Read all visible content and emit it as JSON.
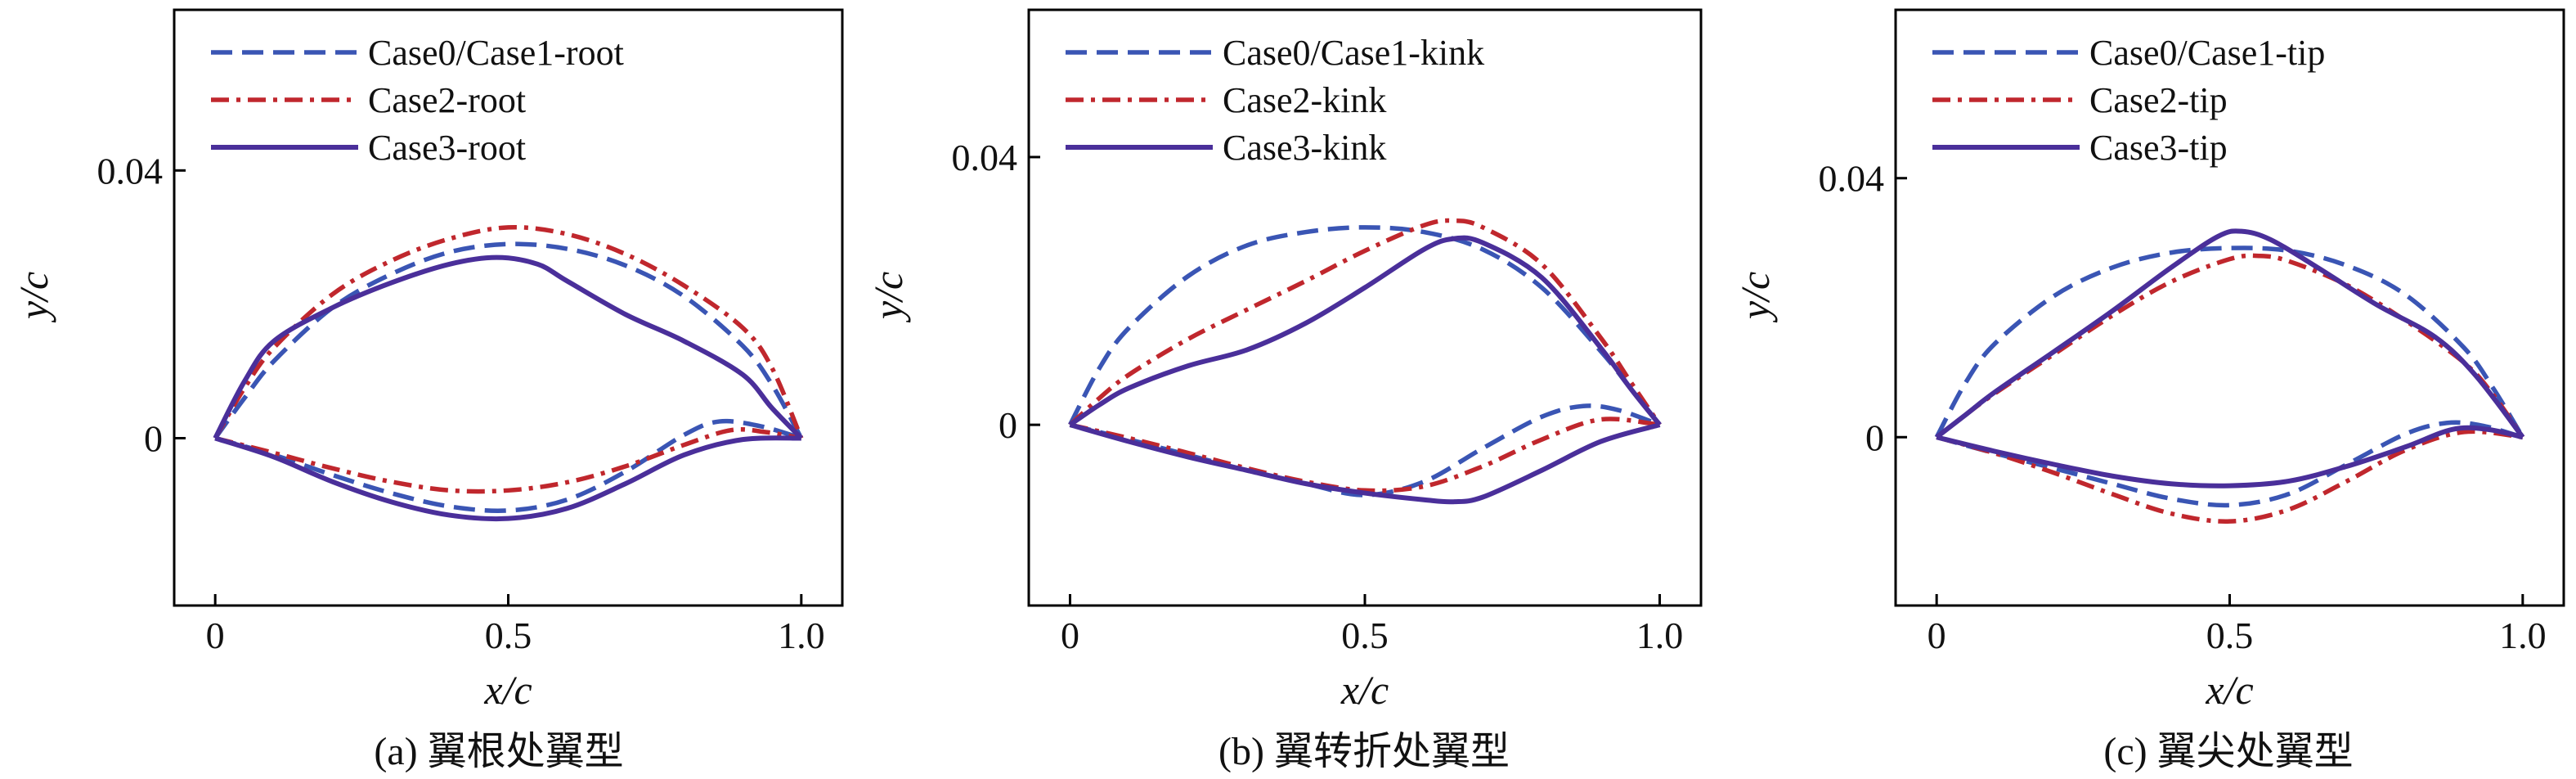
{
  "chart_data": [
    {
      "type": "line",
      "caption": "(a) 翼根处翼型",
      "xlabel": "x/c",
      "ylabel": "y/c",
      "xlim": [
        -0.07,
        1.07
      ],
      "ylim": [
        -0.025,
        0.064
      ],
      "x_ticks": [
        "0",
        "0.5",
        "1.0"
      ],
      "y_ticks": [
        "0",
        "0.04"
      ],
      "legend_position": "top-left",
      "series": [
        {
          "name": "Case0/Case1-root",
          "color": "#3a55b4",
          "style": "dashed",
          "upper": [
            [
              0,
              0
            ],
            [
              0.05,
              0.006
            ],
            [
              0.1,
              0.0115
            ],
            [
              0.2,
              0.0195
            ],
            [
              0.3,
              0.0245
            ],
            [
              0.4,
              0.0278
            ],
            [
              0.5,
              0.029
            ],
            [
              0.6,
              0.0283
            ],
            [
              0.7,
              0.0258
            ],
            [
              0.8,
              0.0212
            ],
            [
              0.9,
              0.0138
            ],
            [
              0.95,
              0.008
            ],
            [
              1.0,
              0.0
            ]
          ],
          "lower": [
            [
              0,
              0
            ],
            [
              0.1,
              -0.0025
            ],
            [
              0.2,
              -0.0055
            ],
            [
              0.3,
              -0.0082
            ],
            [
              0.4,
              -0.0102
            ],
            [
              0.5,
              -0.0108
            ],
            [
              0.6,
              -0.0092
            ],
            [
              0.7,
              -0.005
            ],
            [
              0.8,
              0.0005
            ],
            [
              0.86,
              0.0025
            ],
            [
              0.93,
              0.0018
            ],
            [
              1.0,
              0.0
            ]
          ]
        },
        {
          "name": "Case2-root",
          "color": "#c0272d",
          "style": "dashdot",
          "upper": [
            [
              0,
              0
            ],
            [
              0.05,
              0.0075
            ],
            [
              0.1,
              0.0135
            ],
            [
              0.2,
              0.0215
            ],
            [
              0.3,
              0.0265
            ],
            [
              0.4,
              0.0298
            ],
            [
              0.5,
              0.0315
            ],
            [
              0.6,
              0.0305
            ],
            [
              0.7,
              0.0275
            ],
            [
              0.8,
              0.0228
            ],
            [
              0.9,
              0.0165
            ],
            [
              0.95,
              0.0105
            ],
            [
              1.0,
              0.0
            ]
          ],
          "lower": [
            [
              0,
              0
            ],
            [
              0.1,
              -0.0022
            ],
            [
              0.2,
              -0.0045
            ],
            [
              0.3,
              -0.0065
            ],
            [
              0.4,
              -0.0078
            ],
            [
              0.5,
              -0.0078
            ],
            [
              0.6,
              -0.0066
            ],
            [
              0.7,
              -0.0042
            ],
            [
              0.8,
              -0.001
            ],
            [
              0.88,
              0.0012
            ],
            [
              0.94,
              0.0009
            ],
            [
              1.0,
              0.0
            ]
          ]
        },
        {
          "name": "Case3-root",
          "color": "#4a2f9a",
          "style": "solid",
          "upper": [
            [
              0,
              0
            ],
            [
              0.05,
              0.0085
            ],
            [
              0.1,
              0.0145
            ],
            [
              0.2,
              0.0195
            ],
            [
              0.3,
              0.0232
            ],
            [
              0.4,
              0.026
            ],
            [
              0.48,
              0.027
            ],
            [
              0.55,
              0.026
            ],
            [
              0.6,
              0.0235
            ],
            [
              0.7,
              0.0185
            ],
            [
              0.8,
              0.0145
            ],
            [
              0.9,
              0.0095
            ],
            [
              0.95,
              0.0045
            ],
            [
              1.0,
              0.0
            ]
          ],
          "lower": [
            [
              0,
              0
            ],
            [
              0.1,
              -0.0028
            ],
            [
              0.2,
              -0.0065
            ],
            [
              0.3,
              -0.0095
            ],
            [
              0.4,
              -0.0115
            ],
            [
              0.5,
              -0.012
            ],
            [
              0.6,
              -0.0105
            ],
            [
              0.7,
              -0.0068
            ],
            [
              0.8,
              -0.0025
            ],
            [
              0.9,
              -0.0002
            ],
            [
              1.0,
              0.0
            ]
          ]
        }
      ]
    },
    {
      "type": "line",
      "caption": "(b) 翼转折处翼型",
      "xlabel": "x/c",
      "ylabel": "y/c",
      "xlim": [
        -0.07,
        1.07
      ],
      "ylim": [
        -0.027,
        0.062
      ],
      "x_ticks": [
        "0",
        "0.5",
        "1.0"
      ],
      "y_ticks": [
        "0",
        "0.04"
      ],
      "legend_position": "top-left",
      "series": [
        {
          "name": "Case0/Case1-kink",
          "color": "#3a55b4",
          "style": "dashed",
          "upper": [
            [
              0,
              0
            ],
            [
              0.05,
              0.0085
            ],
            [
              0.1,
              0.0145
            ],
            [
              0.2,
              0.0222
            ],
            [
              0.3,
              0.0268
            ],
            [
              0.4,
              0.0288
            ],
            [
              0.5,
              0.0295
            ],
            [
              0.6,
              0.0288
            ],
            [
              0.7,
              0.0262
            ],
            [
              0.8,
              0.0205
            ],
            [
              0.9,
              0.011
            ],
            [
              0.95,
              0.0055
            ],
            [
              1.0,
              0.0
            ]
          ],
          "lower": [
            [
              0,
              0
            ],
            [
              0.1,
              -0.0022
            ],
            [
              0.2,
              -0.0045
            ],
            [
              0.3,
              -0.0068
            ],
            [
              0.4,
              -0.0088
            ],
            [
              0.5,
              -0.0105
            ],
            [
              0.6,
              -0.0085
            ],
            [
              0.7,
              -0.0035
            ],
            [
              0.8,
              0.0012
            ],
            [
              0.87,
              0.0028
            ],
            [
              0.93,
              0.0022
            ],
            [
              1.0,
              0.0
            ]
          ]
        },
        {
          "name": "Case2-kink",
          "color": "#c0272d",
          "style": "dashdot",
          "upper": [
            [
              0,
              0
            ],
            [
              0.05,
              0.004
            ],
            [
              0.1,
              0.0075
            ],
            [
              0.2,
              0.0128
            ],
            [
              0.3,
              0.0172
            ],
            [
              0.4,
              0.0215
            ],
            [
              0.5,
              0.026
            ],
            [
              0.6,
              0.0298
            ],
            [
              0.65,
              0.0305
            ],
            [
              0.7,
              0.0295
            ],
            [
              0.8,
              0.024
            ],
            [
              0.9,
              0.013
            ],
            [
              0.95,
              0.0065
            ],
            [
              1.0,
              0.0
            ]
          ],
          "lower": [
            [
              0,
              0
            ],
            [
              0.1,
              -0.002
            ],
            [
              0.2,
              -0.0042
            ],
            [
              0.3,
              -0.0065
            ],
            [
              0.4,
              -0.0085
            ],
            [
              0.5,
              -0.0098
            ],
            [
              0.6,
              -0.0092
            ],
            [
              0.7,
              -0.0062
            ],
            [
              0.8,
              -0.0022
            ],
            [
              0.9,
              0.0008
            ],
            [
              1.0,
              0.0
            ]
          ]
        },
        {
          "name": "Case3-kink",
          "color": "#4a2f9a",
          "style": "solid",
          "upper": [
            [
              0,
              0
            ],
            [
              0.05,
              0.003
            ],
            [
              0.1,
              0.0055
            ],
            [
              0.2,
              0.0088
            ],
            [
              0.3,
              0.0112
            ],
            [
              0.4,
              0.0152
            ],
            [
              0.5,
              0.0205
            ],
            [
              0.6,
              0.0262
            ],
            [
              0.65,
              0.0278
            ],
            [
              0.7,
              0.0272
            ],
            [
              0.8,
              0.022
            ],
            [
              0.9,
              0.0115
            ],
            [
              0.95,
              0.0055
            ],
            [
              1.0,
              0.0
            ]
          ],
          "lower": [
            [
              0,
              0
            ],
            [
              0.1,
              -0.0025
            ],
            [
              0.2,
              -0.0048
            ],
            [
              0.3,
              -0.0068
            ],
            [
              0.4,
              -0.0088
            ],
            [
              0.5,
              -0.0102
            ],
            [
              0.6,
              -0.0112
            ],
            [
              0.65,
              -0.0115
            ],
            [
              0.7,
              -0.0108
            ],
            [
              0.8,
              -0.0068
            ],
            [
              0.9,
              -0.0025
            ],
            [
              1.0,
              0.0
            ]
          ]
        }
      ]
    },
    {
      "type": "line",
      "caption": "(c) 翼尖处翼型",
      "xlabel": "x/c",
      "ylabel": "y/c",
      "xlim": [
        -0.07,
        1.07
      ],
      "ylim": [
        -0.026,
        0.066
      ],
      "x_ticks": [
        "0",
        "0.5",
        "1.0"
      ],
      "y_ticks": [
        "0",
        "0.04"
      ],
      "legend_position": "top-left",
      "series": [
        {
          "name": "Case0/Case1-tip",
          "color": "#3a55b4",
          "style": "dashed",
          "upper": [
            [
              0,
              0
            ],
            [
              0.05,
              0.0085
            ],
            [
              0.1,
              0.0145
            ],
            [
              0.2,
              0.0218
            ],
            [
              0.3,
              0.0262
            ],
            [
              0.4,
              0.0285
            ],
            [
              0.5,
              0.0292
            ],
            [
              0.6,
              0.0288
            ],
            [
              0.7,
              0.0265
            ],
            [
              0.8,
              0.022
            ],
            [
              0.9,
              0.0138
            ],
            [
              0.95,
              0.0075
            ],
            [
              1.0,
              0.0
            ]
          ],
          "lower": [
            [
              0,
              0
            ],
            [
              0.1,
              -0.0025
            ],
            [
              0.2,
              -0.0048
            ],
            [
              0.3,
              -0.0072
            ],
            [
              0.4,
              -0.0095
            ],
            [
              0.5,
              -0.0105
            ],
            [
              0.6,
              -0.0088
            ],
            [
              0.7,
              -0.0042
            ],
            [
              0.8,
              0.0005
            ],
            [
              0.87,
              0.0022
            ],
            [
              0.93,
              0.0018
            ],
            [
              1.0,
              0.0
            ]
          ]
        },
        {
          "name": "Case2-tip",
          "color": "#c0272d",
          "style": "dashdot",
          "upper": [
            [
              0,
              0
            ],
            [
              0.05,
              0.0035
            ],
            [
              0.1,
              0.0068
            ],
            [
              0.2,
              0.0128
            ],
            [
              0.3,
              0.0188
            ],
            [
              0.4,
              0.024
            ],
            [
              0.5,
              0.0275
            ],
            [
              0.55,
              0.028
            ],
            [
              0.6,
              0.0272
            ],
            [
              0.7,
              0.0235
            ],
            [
              0.8,
              0.018
            ],
            [
              0.9,
              0.0115
            ],
            [
              0.95,
              0.0065
            ],
            [
              1.0,
              0.0
            ]
          ],
          "lower": [
            [
              0,
              0
            ],
            [
              0.1,
              -0.0025
            ],
            [
              0.2,
              -0.0055
            ],
            [
              0.3,
              -0.0088
            ],
            [
              0.4,
              -0.0118
            ],
            [
              0.5,
              -0.013
            ],
            [
              0.6,
              -0.0112
            ],
            [
              0.7,
              -0.0068
            ],
            [
              0.8,
              -0.002
            ],
            [
              0.9,
              0.0008
            ],
            [
              1.0,
              0.0
            ]
          ]
        },
        {
          "name": "Case3-tip",
          "color": "#4a2f9a",
          "style": "solid",
          "upper": [
            [
              0,
              0
            ],
            [
              0.05,
              0.0035
            ],
            [
              0.1,
              0.007
            ],
            [
              0.2,
              0.0132
            ],
            [
              0.3,
              0.0195
            ],
            [
              0.4,
              0.0262
            ],
            [
              0.48,
              0.031
            ],
            [
              0.52,
              0.0318
            ],
            [
              0.57,
              0.0305
            ],
            [
              0.65,
              0.0262
            ],
            [
              0.75,
              0.0205
            ],
            [
              0.85,
              0.0155
            ],
            [
              0.92,
              0.0095
            ],
            [
              1.0,
              0.0
            ]
          ],
          "lower": [
            [
              0,
              0
            ],
            [
              0.1,
              -0.0022
            ],
            [
              0.2,
              -0.0042
            ],
            [
              0.3,
              -0.006
            ],
            [
              0.4,
              -0.0072
            ],
            [
              0.5,
              -0.0075
            ],
            [
              0.6,
              -0.0068
            ],
            [
              0.7,
              -0.0045
            ],
            [
              0.8,
              -0.0015
            ],
            [
              0.88,
              0.0012
            ],
            [
              0.94,
              0.0012
            ],
            [
              1.0,
              0.0
            ]
          ]
        }
      ]
    }
  ]
}
